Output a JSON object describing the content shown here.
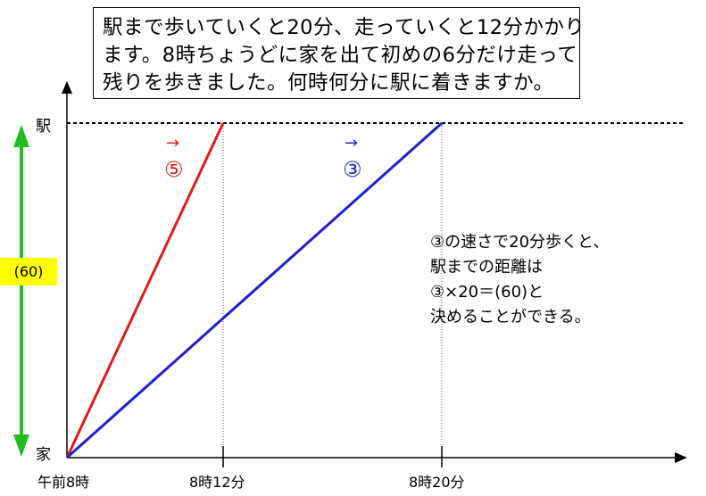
{
  "problem": {
    "lines": [
      "駅まで歩いていくと20分、走っていくと12分かかり",
      "ます。8時ちょうどに家を出て初めの6分だけ走って",
      "残りを歩きました。何時何分に駅に着きますか。"
    ]
  },
  "axes": {
    "y_top_label": "駅",
    "y_bottom_label": "家",
    "x_labels": [
      "午前8時",
      "8時12分",
      "8時20分"
    ]
  },
  "distance_tag": "(60)",
  "run_speed": {
    "arrow": "→",
    "label": "⑤"
  },
  "walk_speed": {
    "arrow": "→",
    "label": "③"
  },
  "explanation": {
    "lines": [
      "③の速さで20分歩くと、",
      "駅までの距離は",
      "③×20＝(60)と",
      "決めることができる。"
    ]
  },
  "colors": {
    "run": "#e31a1a",
    "walk": "#1f1fcc",
    "distance_arrow": "#22bb22",
    "tag_bg": "#ffff00"
  }
}
